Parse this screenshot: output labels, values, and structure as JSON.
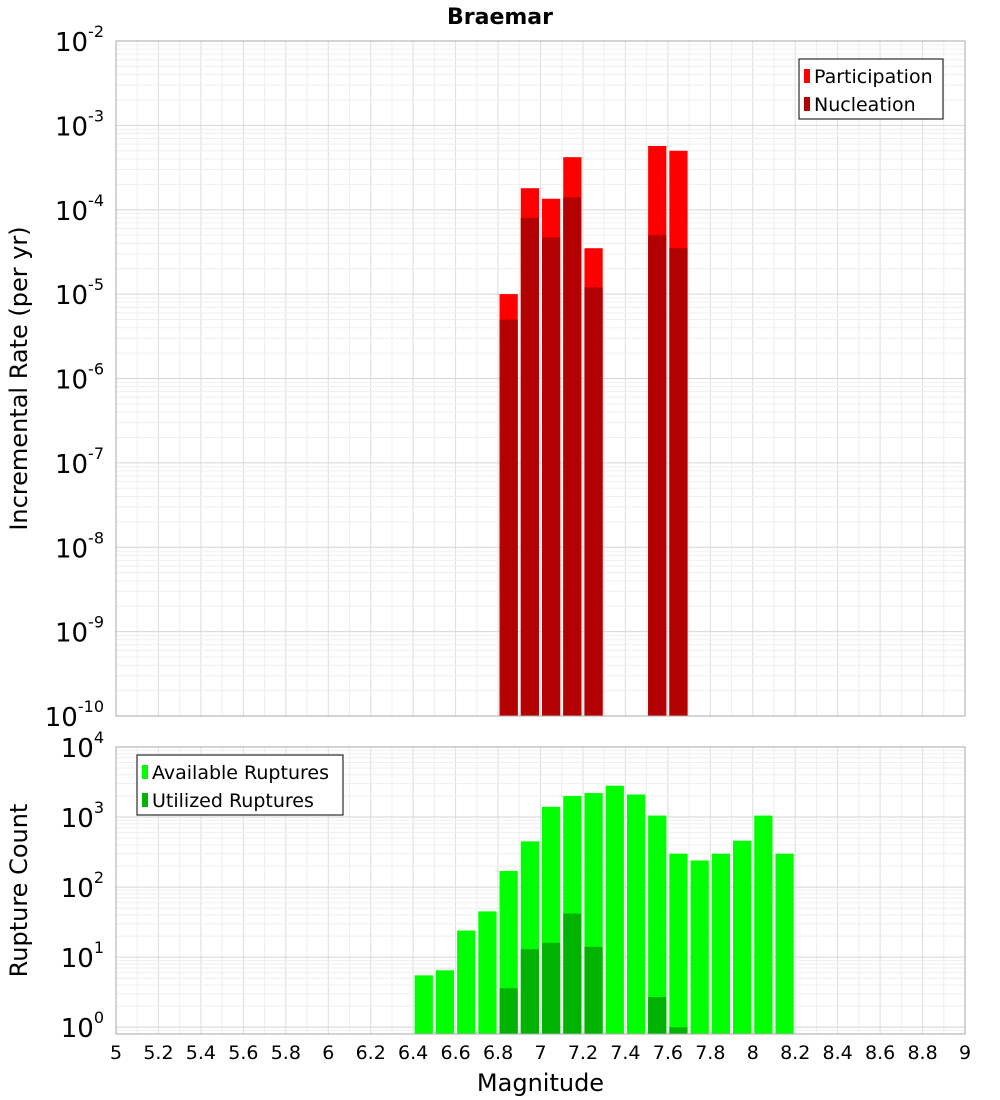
{
  "chart_data": [
    {
      "type": "bar",
      "title": "Braemar",
      "xlabel": "",
      "ylabel": "Incremental Rate (per yr)",
      "ylog": true,
      "ylim": [
        1e-10,
        0.01
      ],
      "y_tick_exponents": [
        -10,
        -9,
        -8,
        -7,
        -6,
        -5,
        -4,
        -3,
        -2
      ],
      "grid": true,
      "legend_position": "top-right",
      "bin_width": 0.1,
      "series": [
        {
          "name": "Participation",
          "color": "#ff0000",
          "x": [
            6.85,
            6.95,
            7.05,
            7.15,
            7.25,
            7.55,
            7.65
          ],
          "values": [
            1e-05,
            0.00018,
            0.000135,
            0.00042,
            3.5e-05,
            0.00057,
            0.0005
          ]
        },
        {
          "name": "Nucleation",
          "color": "#b30000",
          "x": [
            6.85,
            6.95,
            7.05,
            7.15,
            7.25,
            7.55,
            7.65
          ],
          "values": [
            5e-06,
            8e-05,
            4.7e-05,
            0.00014,
            1.2e-05,
            5e-05,
            3.5e-05
          ]
        }
      ]
    },
    {
      "type": "bar",
      "title": "",
      "xlabel": "Magnitude",
      "ylabel": "Rupture Count",
      "ylog": true,
      "ylim": [
        0.8,
        10000
      ],
      "y_tick_exponents": [
        0,
        1,
        2,
        3,
        4
      ],
      "xlim": [
        5,
        9
      ],
      "x_ticks": [
        "5",
        "5.2",
        "5.4",
        "5.6",
        "5.8",
        "6",
        "6.2",
        "6.4",
        "6.6",
        "6.8",
        "7",
        "7.2",
        "7.4",
        "7.6",
        "7.8",
        "8",
        "8.2",
        "8.4",
        "8.6",
        "8.8",
        "9"
      ],
      "grid": true,
      "legend_position": "top-left",
      "bin_width": 0.1,
      "series": [
        {
          "name": "Available Ruptures",
          "color": "#00ff00",
          "x": [
            6.45,
            6.55,
            6.65,
            6.75,
            6.85,
            6.95,
            7.05,
            7.15,
            7.25,
            7.35,
            7.45,
            7.55,
            7.65,
            7.75,
            7.85,
            7.95,
            8.05,
            8.15
          ],
          "values": [
            5.5,
            6.5,
            24,
            45,
            170,
            450,
            1400,
            2000,
            2200,
            2800,
            2100,
            1050,
            300,
            240,
            300,
            460,
            1050,
            300
          ]
        },
        {
          "name": "Utilized Ruptures",
          "color": "#00b300",
          "x": [
            6.85,
            6.95,
            7.05,
            7.15,
            7.25,
            7.55,
            7.65
          ],
          "values": [
            3.6,
            13,
            16,
            42,
            14,
            2.7,
            1
          ]
        }
      ]
    }
  ]
}
